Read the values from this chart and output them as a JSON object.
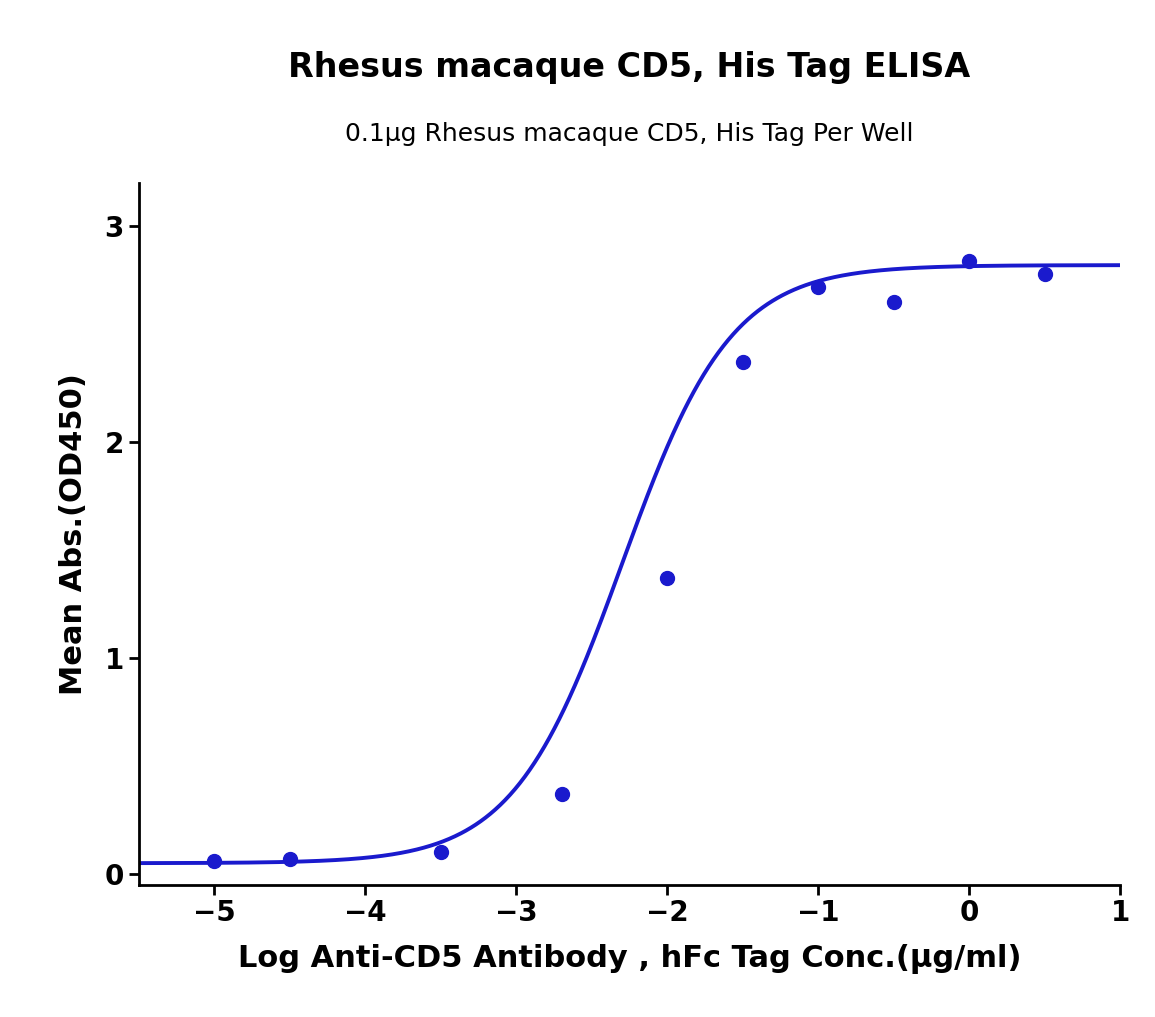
{
  "title_line1": "Rhesus macaque CD5, His Tag ELISA",
  "title_line2": "0.1μg Rhesus macaque CD5, His Tag Per Well",
  "xlabel": "Log Anti-CD5 Antibody , hFc Tag Conc.(μg/ml)",
  "ylabel": "Mean Abs.(OD450)",
  "xlim": [
    -5.5,
    1.0
  ],
  "ylim": [
    -0.05,
    3.2
  ],
  "xticks": [
    -5,
    -4,
    -3,
    -2,
    -1,
    0,
    1
  ],
  "yticks": [
    0,
    1,
    2,
    3
  ],
  "data_x": [
    -5.0,
    -4.5,
    -3.5,
    -2.7,
    -2.0,
    -1.5,
    -1.0,
    -0.5,
    0.0,
    0.5
  ],
  "data_y": [
    0.06,
    0.07,
    0.1,
    0.37,
    1.37,
    2.37,
    2.72,
    2.65,
    2.84,
    2.78
  ],
  "line_color": "#1a1acd",
  "dot_color": "#1a1acd",
  "title_fontsize": 24,
  "subtitle_fontsize": 18,
  "axis_label_fontsize": 22,
  "tick_fontsize": 20,
  "dot_size": 100,
  "line_width": 2.8
}
